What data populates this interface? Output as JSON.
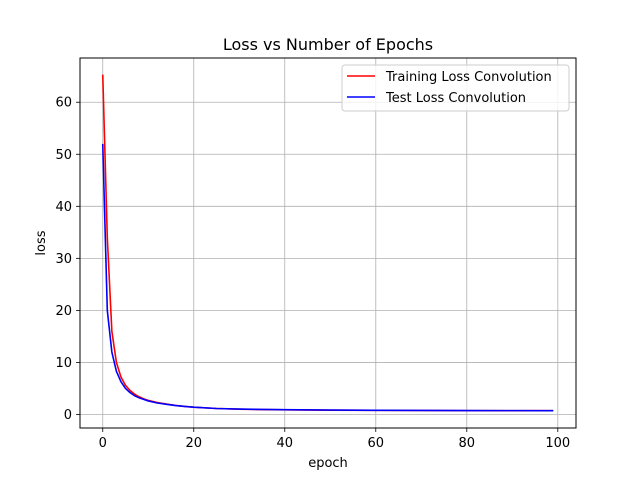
{
  "chart_data": {
    "type": "line",
    "title": "Loss vs Number of Epochs",
    "xlabel": "epoch",
    "ylabel": "loss",
    "xlim": [
      -5,
      104
    ],
    "ylim": [
      -2.6,
      68.5
    ],
    "xticks": [
      0,
      20,
      40,
      60,
      80,
      100
    ],
    "yticks": [
      0,
      10,
      20,
      30,
      40,
      50,
      60
    ],
    "grid": true,
    "legend_position": "top-right",
    "series": [
      {
        "name": "Training Loss Convolution",
        "color": "#ff0000",
        "points": [
          [
            0,
            65.3
          ],
          [
            1,
            34.0
          ],
          [
            2,
            16.0
          ],
          [
            3,
            10.0
          ],
          [
            4,
            7.2
          ],
          [
            5,
            5.6
          ],
          [
            6,
            4.6
          ],
          [
            7,
            3.9
          ],
          [
            8,
            3.4
          ],
          [
            9,
            3.0
          ],
          [
            10,
            2.7
          ],
          [
            12,
            2.3
          ],
          [
            14,
            2.0
          ],
          [
            16,
            1.75
          ],
          [
            18,
            1.55
          ],
          [
            20,
            1.4
          ],
          [
            25,
            1.15
          ],
          [
            30,
            1.02
          ],
          [
            35,
            0.95
          ],
          [
            40,
            0.9
          ],
          [
            50,
            0.83
          ],
          [
            60,
            0.79
          ],
          [
            70,
            0.76
          ],
          [
            80,
            0.74
          ],
          [
            90,
            0.73
          ],
          [
            99,
            0.72
          ]
        ]
      },
      {
        "name": "Test Loss Convolution",
        "color": "#0000ff",
        "points": [
          [
            0,
            52.0
          ],
          [
            1,
            20.0
          ],
          [
            2,
            12.0
          ],
          [
            3,
            8.3
          ],
          [
            4,
            6.3
          ],
          [
            5,
            5.0
          ],
          [
            6,
            4.2
          ],
          [
            7,
            3.6
          ],
          [
            8,
            3.2
          ],
          [
            9,
            2.9
          ],
          [
            10,
            2.6
          ],
          [
            12,
            2.2
          ],
          [
            14,
            1.95
          ],
          [
            16,
            1.72
          ],
          [
            18,
            1.55
          ],
          [
            20,
            1.4
          ],
          [
            25,
            1.15
          ],
          [
            30,
            1.03
          ],
          [
            35,
            0.96
          ],
          [
            40,
            0.91
          ],
          [
            50,
            0.84
          ],
          [
            60,
            0.8
          ],
          [
            70,
            0.77
          ],
          [
            80,
            0.75
          ],
          [
            90,
            0.74
          ],
          [
            99,
            0.73
          ]
        ]
      }
    ]
  }
}
